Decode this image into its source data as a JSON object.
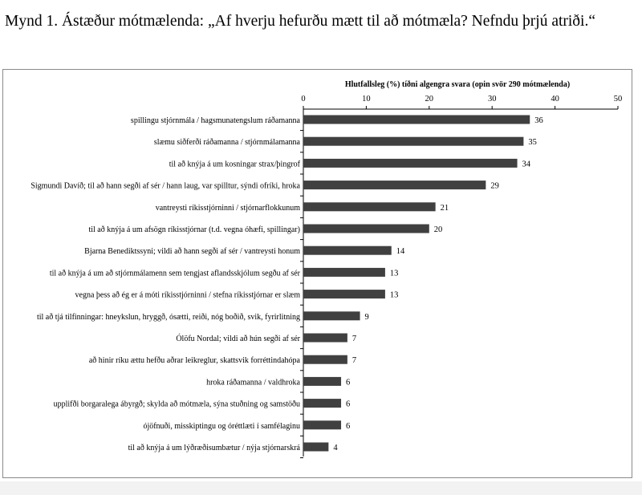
{
  "title": "Mynd 1. Ástæður mótmælenda: „Af hverju hefurðu mætt til að mótmæla? Nefndu þrjú atriði.“",
  "chart_data": {
    "type": "bar",
    "orientation": "horizontal",
    "title": "Hlutfallsleg (%) tíðni algengra svara (opin svör 290 mótmælenda)",
    "xlabel": "",
    "ylabel": "",
    "xlim": [
      0,
      50
    ],
    "ticks": [
      0,
      10,
      20,
      30,
      40,
      50
    ],
    "grid": false,
    "legend": "none",
    "categories": [
      "spillingu stjórnmála / hagsmunatengslum ráðamanna",
      "slæmu siðferði ráðamanna / stjórnmálamanna",
      "til að knýja á um kosningar strax/þingrof",
      "Sigmundi Davíð; til að hann segði af sér / hann laug, var spilltur, sýndi ofríki, hroka",
      "vantreysti ríkisstjórninni / stjórnarflokkunum",
      "til að knýja á um afsögn ríkisstjórnar (t.d. vegna óhæfi, spillingar)",
      "Bjarna Benediktssyni; vildi að hann segði af sér / vantreysti honum",
      "til að knýja á um að stjórnmálamenn sem tengjast aflandsskjólum segðu af sér",
      "vegna þess að ég er á móti ríkisstjórninni / stefna ríkisstjórnar er slæm",
      "til að tjá tilfinningar: hneykslun, hryggð, ósætti, reiði, nóg boðið, svik, fyrirlitning",
      "Ólöfu Nordal; vildi að hún segði af sér",
      "að hinir ríku ættu hefðu aðrar leikreglur, skattsvik forréttindahópa",
      "hroka ráðamanna / valdhroka",
      "upplifði borgaralega ábyrgð; skylda að mótmæla, sýna stuðning og samstöðu",
      "ójöfnuði, misskiptingu og óréttlæti í samfélaginu",
      "til að knýja á um lýðræðisumbætur / nýja stjórnarskrá"
    ],
    "values": [
      36,
      35,
      34,
      29,
      21,
      20,
      14,
      13,
      13,
      9,
      7,
      7,
      6,
      6,
      6,
      4
    ],
    "bar_color": "#404040"
  }
}
